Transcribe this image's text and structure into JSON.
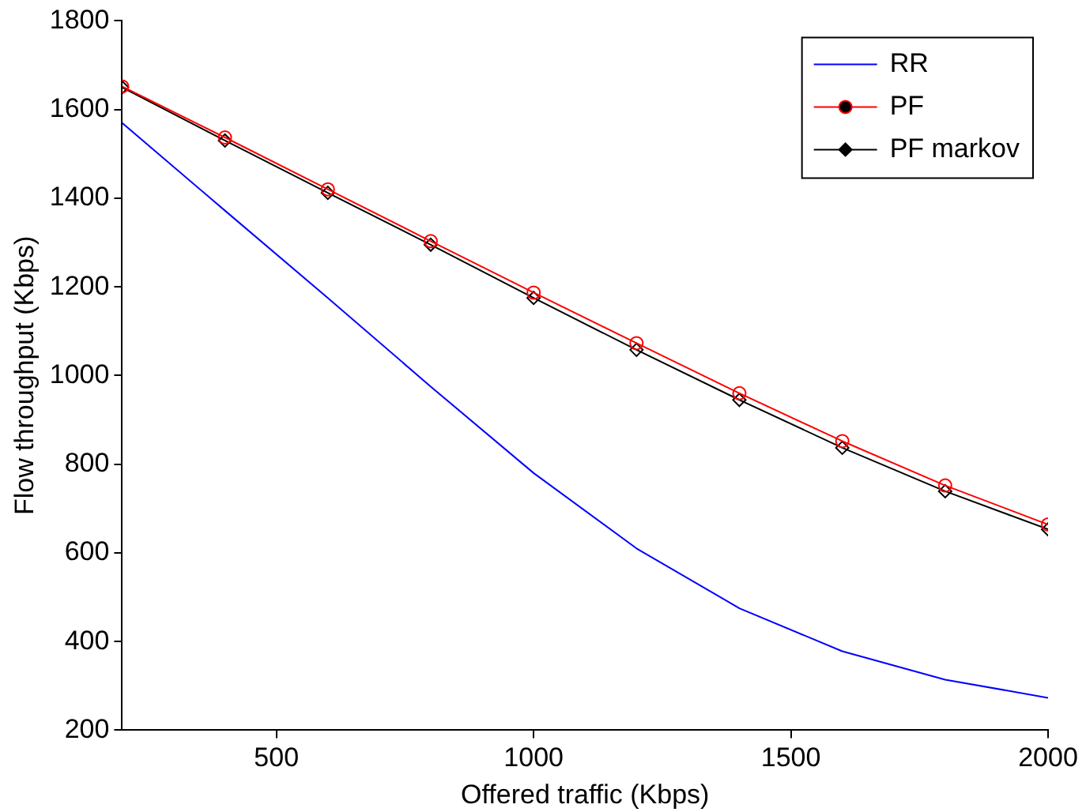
{
  "chart_data": {
    "type": "line",
    "xlabel": "Offered traffic (Kbps)",
    "ylabel": "Flow throughput (Kbps)",
    "x": [
      200,
      400,
      600,
      800,
      1000,
      1200,
      1400,
      1600,
      1800,
      2000
    ],
    "series": [
      {
        "name": "RR",
        "color": "#0000ff",
        "marker": "none",
        "values": [
          1570,
          1372,
          1175,
          975,
          780,
          610,
          475,
          378,
          314,
          273
        ]
      },
      {
        "name": "PF",
        "color": "#ff0000",
        "marker": "circle",
        "values": [
          1652,
          1537,
          1420,
          1303,
          1187,
          1073,
          960,
          852,
          752,
          664
        ]
      },
      {
        "name": "PF markov",
        "color": "#000000",
        "marker": "diamond",
        "values": [
          1650,
          1530,
          1412,
          1295,
          1175,
          1058,
          945,
          837,
          739,
          653
        ]
      }
    ],
    "xlim": [
      200,
      2000
    ],
    "xticks": [
      500,
      1000,
      1500,
      2000
    ],
    "ylim": [
      200,
      1800
    ],
    "yticks": [
      200,
      400,
      600,
      800,
      1000,
      1200,
      1400,
      1600,
      1800
    ],
    "grid": false,
    "legend": "top right"
  }
}
